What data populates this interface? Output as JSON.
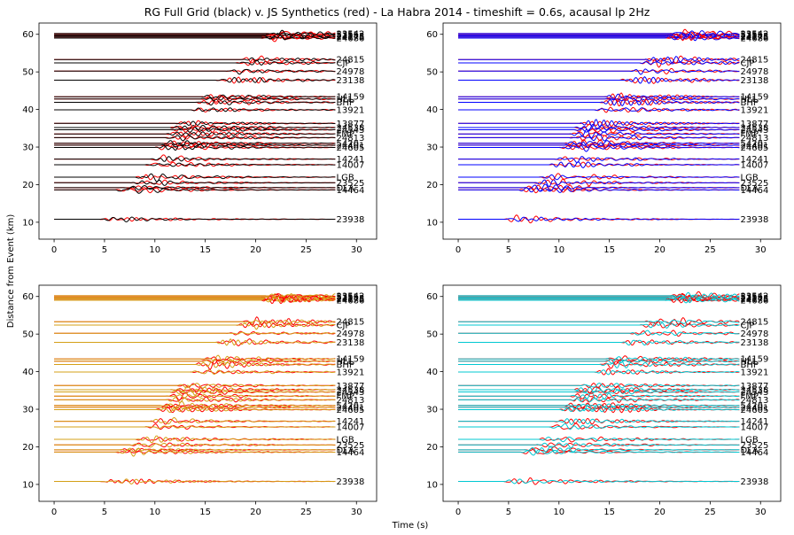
{
  "figure": {
    "title": "RG Full Grid (black) v. JS Synthetics (red) - La Habra 2014 - timeshift = 0.6s, acausal lp 2Hz",
    "xlabel": "Time (s)",
    "ylabel": "Distance from Event (km)"
  },
  "chart_data": [
    {
      "type": "line",
      "panel": "top-left",
      "xlim": [
        -1.5,
        32
      ],
      "ylim": [
        5.5,
        63
      ],
      "xticks": [
        0,
        5,
        10,
        15,
        20,
        25,
        30
      ],
      "yticks": [
        10,
        20,
        30,
        40,
        50,
        60
      ],
      "series": [
        {
          "color": "#ff0000",
          "style": "synthetic"
        },
        {
          "color": "#000000",
          "style": "recorded"
        }
      ]
    },
    {
      "type": "line",
      "panel": "top-right",
      "xlim": [
        -1.5,
        32
      ],
      "ylim": [
        5.5,
        63
      ],
      "xticks": [
        0,
        5,
        10,
        15,
        20,
        25,
        30
      ],
      "yticks": [
        10,
        20,
        30,
        40,
        50,
        60
      ],
      "series": [
        {
          "color": "#ff0000",
          "style": "synthetic"
        },
        {
          "color": "#0000ff",
          "style": "recorded"
        }
      ]
    },
    {
      "type": "line",
      "panel": "bottom-left",
      "xlim": [
        -1.5,
        32
      ],
      "ylim": [
        5.5,
        63
      ],
      "xticks": [
        0,
        5,
        10,
        15,
        20,
        25,
        30
      ],
      "yticks": [
        10,
        20,
        30,
        40,
        50,
        60
      ],
      "series": [
        {
          "color": "#ff0000",
          "style": "synthetic"
        },
        {
          "color": "#d4a017",
          "style": "recorded"
        }
      ]
    },
    {
      "type": "line",
      "panel": "bottom-right",
      "xlim": [
        -1.5,
        32
      ],
      "ylim": [
        5.5,
        63
      ],
      "xticks": [
        0,
        5,
        10,
        15,
        20,
        25,
        30
      ],
      "yticks": [
        10,
        20,
        30,
        40,
        50,
        60
      ],
      "series": [
        {
          "color": "#ff0000",
          "style": "synthetic"
        },
        {
          "color": "#00c8d2",
          "style": "recorded"
        }
      ]
    }
  ],
  "stations": [
    {
      "label": "23938",
      "distance": 10.8,
      "onset": 4.5
    },
    {
      "label": "14464",
      "distance": 18.6,
      "onset": 6.0
    },
    {
      "label": "DLA",
      "distance": 19.2,
      "onset": 6.5
    },
    {
      "label": "23525",
      "distance": 20.5,
      "onset": 7.5
    },
    {
      "label": "LGB",
      "distance": 22.0,
      "onset": 8.0
    },
    {
      "label": "14007",
      "distance": 25.3,
      "onset": 9.0
    },
    {
      "label": "14241",
      "distance": 26.8,
      "onset": 9.5
    },
    {
      "label": "24605",
      "distance": 29.9,
      "onset": 10.0
    },
    {
      "label": "24401",
      "distance": 30.5,
      "onset": 10.5
    },
    {
      "label": "5420",
      "distance": 31.0,
      "onset": 10.5
    },
    {
      "label": "24813",
      "distance": 32.5,
      "onset": 11.0
    },
    {
      "label": "FMP",
      "distance": 33.5,
      "onset": 11.0
    },
    {
      "label": "24543",
      "distance": 34.6,
      "onset": 11.5
    },
    {
      "label": "24538",
      "distance": 35.2,
      "onset": 11.5
    },
    {
      "label": "13877",
      "distance": 36.3,
      "onset": 12.0
    },
    {
      "label": "13921",
      "distance": 39.9,
      "onset": 13.5
    },
    {
      "label": "BHP",
      "distance": 41.9,
      "onset": 14.0
    },
    {
      "label": "HLL",
      "distance": 42.8,
      "onset": 14.5
    },
    {
      "label": "14159",
      "distance": 43.4,
      "onset": 14.5
    },
    {
      "label": "23138",
      "distance": 47.8,
      "onset": 16.0
    },
    {
      "label": "24978",
      "distance": 50.2,
      "onset": 17.0
    },
    {
      "label": "CJP",
      "distance": 52.4,
      "onset": 18.0
    },
    {
      "label": "24815",
      "distance": 53.3,
      "onset": 18.5
    },
    {
      "label": "24686",
      "distance": 59.0,
      "onset": 20.5
    },
    {
      "label": "24175",
      "distance": 59.3,
      "onset": 20.5
    },
    {
      "label": "23543",
      "distance": 59.6,
      "onset": 20.5
    },
    {
      "label": "5355",
      "distance": 59.9,
      "onset": 21.0
    },
    {
      "label": "23542",
      "distance": 60.2,
      "onset": 21.0
    }
  ]
}
